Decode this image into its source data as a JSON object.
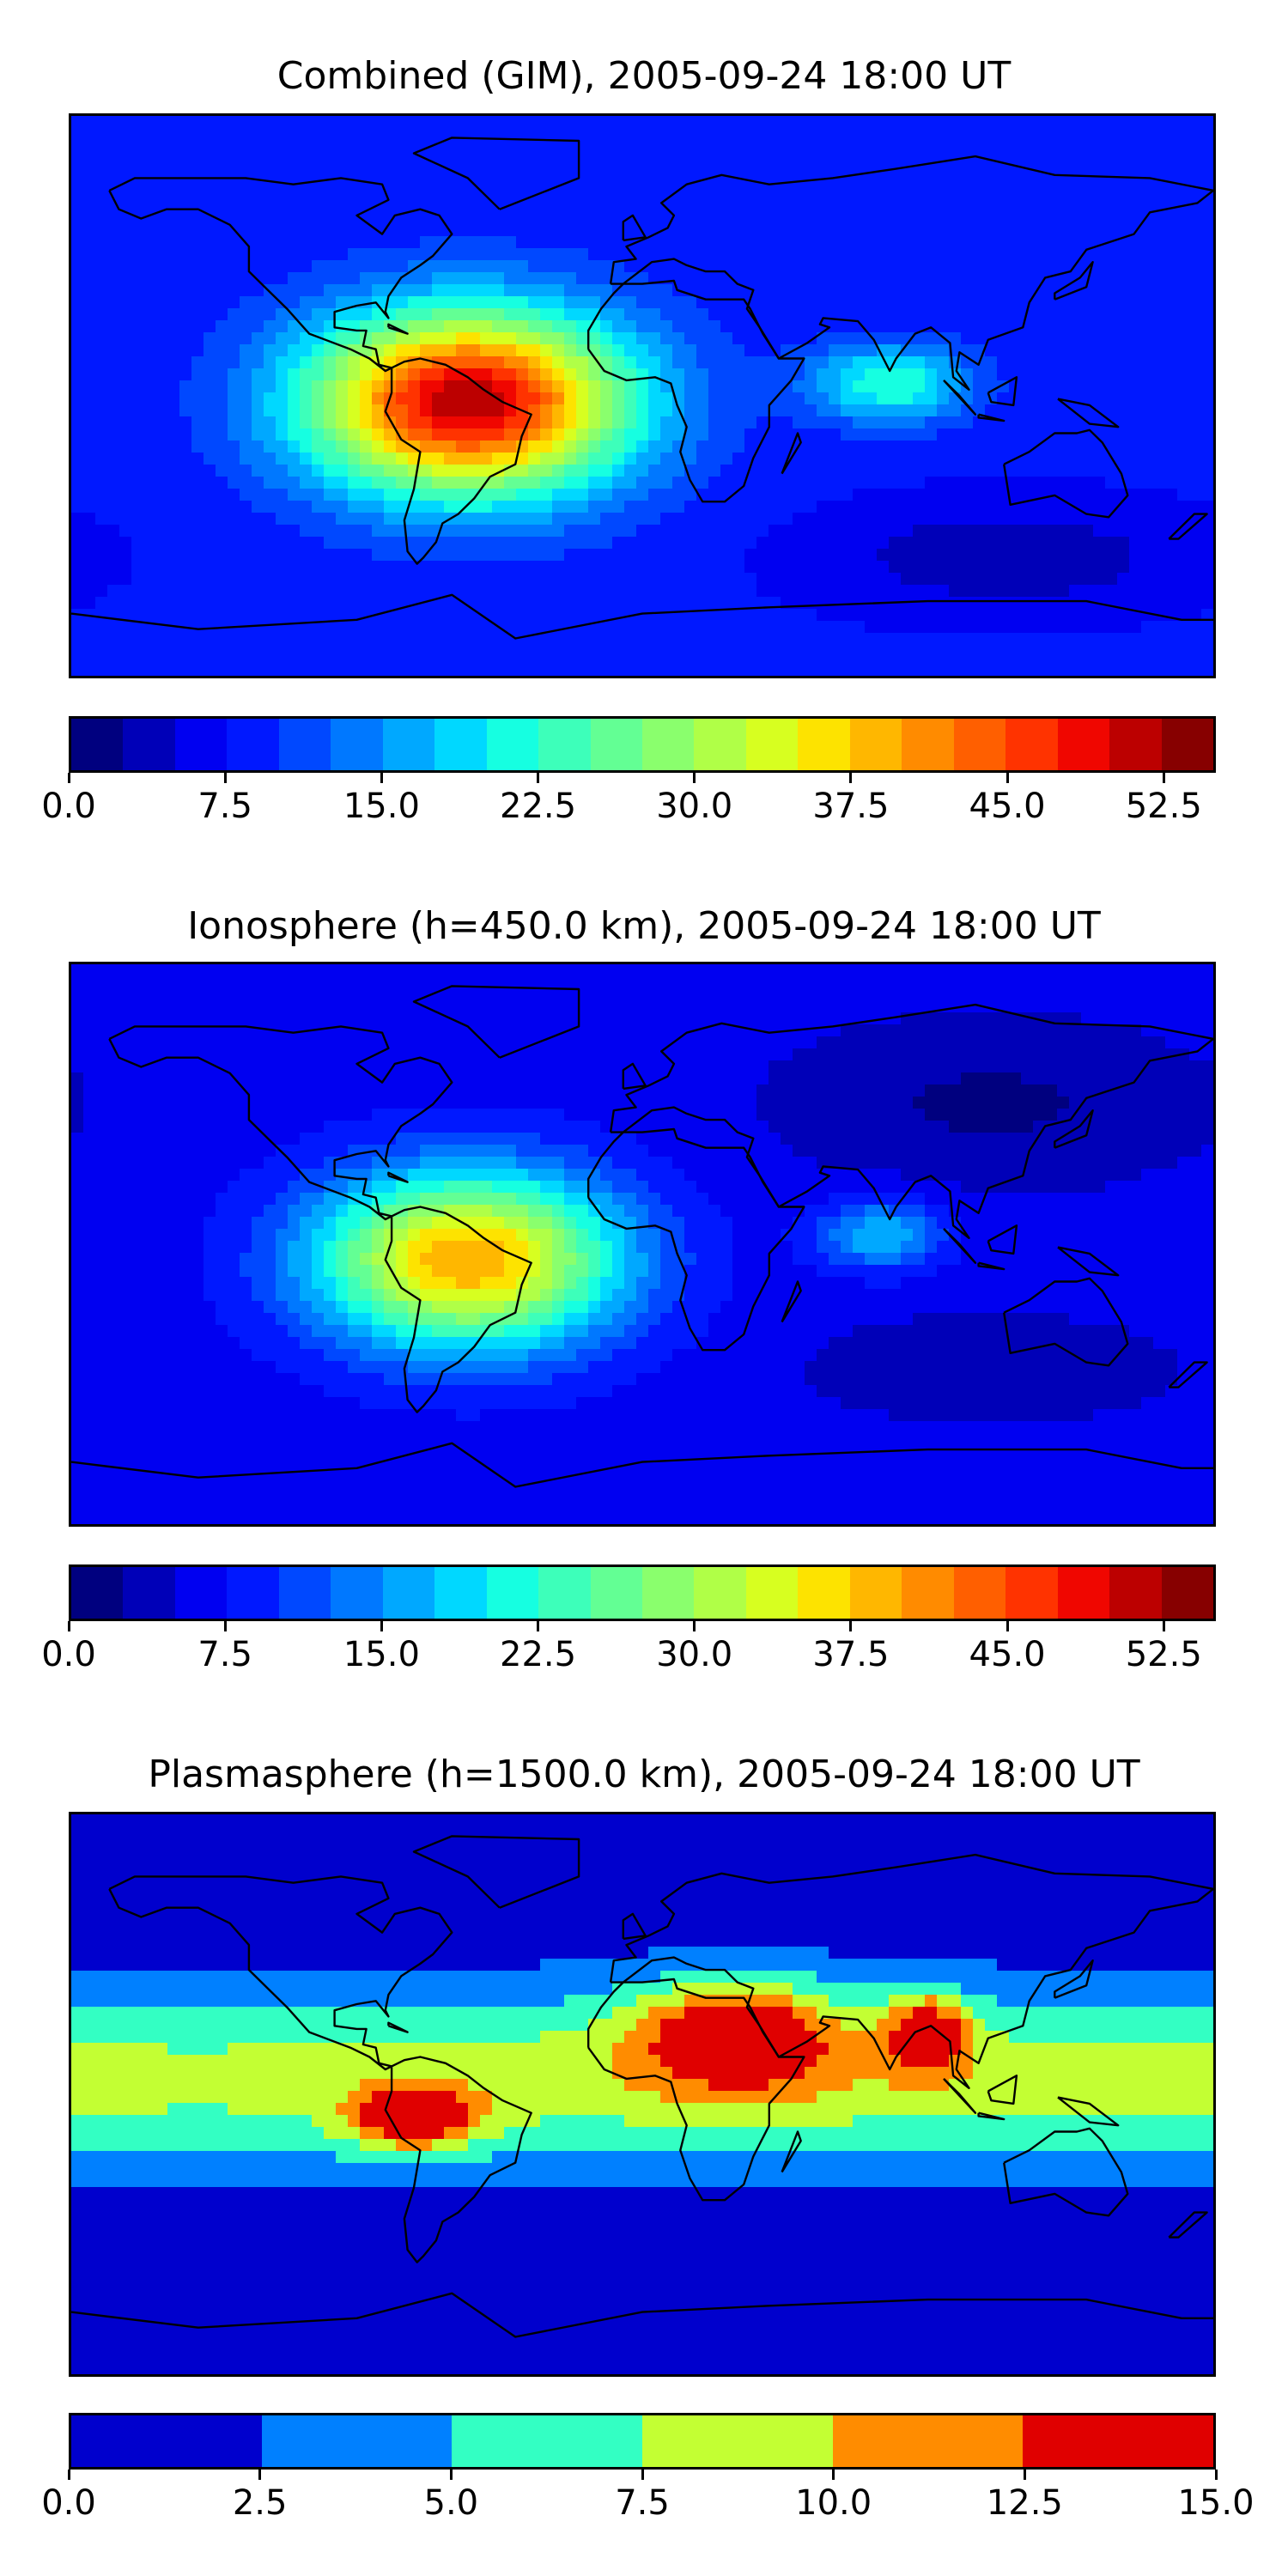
{
  "chart_data": [
    {
      "type": "heatmap",
      "title": "Combined (GIM), 2005-09-24 18:00 UT",
      "colorbar": {
        "levels": [
          0.0,
          2.5,
          5.0,
          7.5,
          10.0,
          12.5,
          15.0,
          17.5,
          20.0,
          22.5,
          25.0,
          27.5,
          30.0,
          32.5,
          35.0,
          37.5,
          40.0,
          42.5,
          45.0,
          47.5,
          50.0,
          52.5,
          55.0
        ],
        "tick_labels": [
          "0.0",
          "7.5",
          "15.0",
          "22.5",
          "30.0",
          "37.5",
          "45.0",
          "52.5"
        ],
        "colors": [
          "#00007f",
          "#0000b8",
          "#0000f1",
          "#0018ff",
          "#0048ff",
          "#0078ff",
          "#00a8ff",
          "#00d8ff",
          "#16ffe1",
          "#3dffba",
          "#63ff94",
          "#8aff6d",
          "#b0ff47",
          "#d7ff20",
          "#fde300",
          "#ffb700",
          "#ff8b00",
          "#ff5f00",
          "#ff3300",
          "#f00600",
          "#bc0000",
          "#870000"
        ]
      },
      "background_value": 8.0,
      "features": [
        {
          "name": "south-america-peak",
          "lon": -55,
          "lat": -2,
          "peak": 52.0,
          "lon_sigma": 36,
          "lat_sigma": 21
        },
        {
          "name": "indian-ocean-secondary",
          "lon": 78,
          "lat": 4,
          "peak": 22.5,
          "lon_sigma": 18,
          "lat_sigma": 9
        },
        {
          "name": "pacific-southern-minimum",
          "lon": 115,
          "lat": -52,
          "peak": 3.0,
          "lon_sigma": 40,
          "lat_sigma": 12
        }
      ],
      "units": "TECU"
    },
    {
      "type": "heatmap",
      "title": "Ionosphere  (h=450.0 km), 2005-09-24 18:00 UT",
      "colorbar": {
        "levels": [
          0.0,
          2.5,
          5.0,
          7.5,
          10.0,
          12.5,
          15.0,
          17.5,
          20.0,
          22.5,
          25.0,
          27.5,
          30.0,
          32.5,
          35.0,
          37.5,
          40.0,
          42.5,
          45.0,
          47.5,
          50.0,
          52.5,
          55.0
        ],
        "tick_labels": [
          "0.0",
          "7.5",
          "15.0",
          "22.5",
          "30.0",
          "37.5",
          "45.0",
          "52.5"
        ],
        "colors": [
          "#00007f",
          "#0000b8",
          "#0000f1",
          "#0018ff",
          "#0048ff",
          "#0078ff",
          "#00a8ff",
          "#00d8ff",
          "#16ffe1",
          "#3dffba",
          "#63ff94",
          "#8aff6d",
          "#b0ff47",
          "#d7ff20",
          "#fde300",
          "#ffb700",
          "#ff8b00",
          "#ff5f00",
          "#ff3300",
          "#f00600",
          "#bc0000",
          "#870000"
        ]
      },
      "background_value": 6.0,
      "features": [
        {
          "name": "south-america-peak",
          "lon": -55,
          "lat": -5,
          "peak": 40.0,
          "lon_sigma": 34,
          "lat_sigma": 20
        },
        {
          "name": "indian-ocean-secondary",
          "lon": 75,
          "lat": 3,
          "peak": 17.5,
          "lon_sigma": 14,
          "lat_sigma": 8
        },
        {
          "name": "asia-minimum",
          "lon": 110,
          "lat": 45,
          "peak": 2.0,
          "lon_sigma": 45,
          "lat_sigma": 18
        },
        {
          "name": "pacific-southern-minimum",
          "lon": 110,
          "lat": -40,
          "peak": 3.0,
          "lon_sigma": 40,
          "lat_sigma": 12
        }
      ],
      "units": "TECU"
    },
    {
      "type": "heatmap",
      "title": "Plasmasphere (h=1500.0 km), 2005-09-24 18:00 UT",
      "colorbar": {
        "levels": [
          0.0,
          2.5,
          5.0,
          7.5,
          10.0,
          12.5,
          15.0
        ],
        "tick_labels": [
          "0.0",
          "2.5",
          "5.0",
          "7.5",
          "10.0",
          "12.5",
          "15.0"
        ],
        "colors": [
          "#0000cd",
          "#0080ff",
          "#33ffc3",
          "#c3ff33",
          "#ff8c00",
          "#e00000"
        ]
      },
      "background_value": 1.0,
      "features": [
        {
          "name": "equatorial-band",
          "lon": 40,
          "lat": 5,
          "peak": 9.0,
          "lon_sigma": 400,
          "lat_sigma": 20
        },
        {
          "name": "africa-arabia-peak",
          "lon": 30,
          "lat": 20,
          "peak": 11.5,
          "lon_sigma": 22,
          "lat_sigma": 12
        },
        {
          "name": "south-asia-peak",
          "lon": 90,
          "lat": 20,
          "peak": 11.0,
          "lon_sigma": 9,
          "lat_sigma": 9
        },
        {
          "name": "south-america-peak",
          "lon": -72,
          "lat": -8,
          "peak": 11.0,
          "lon_sigma": 14,
          "lat_sigma": 7
        }
      ],
      "units": "TECU"
    }
  ]
}
